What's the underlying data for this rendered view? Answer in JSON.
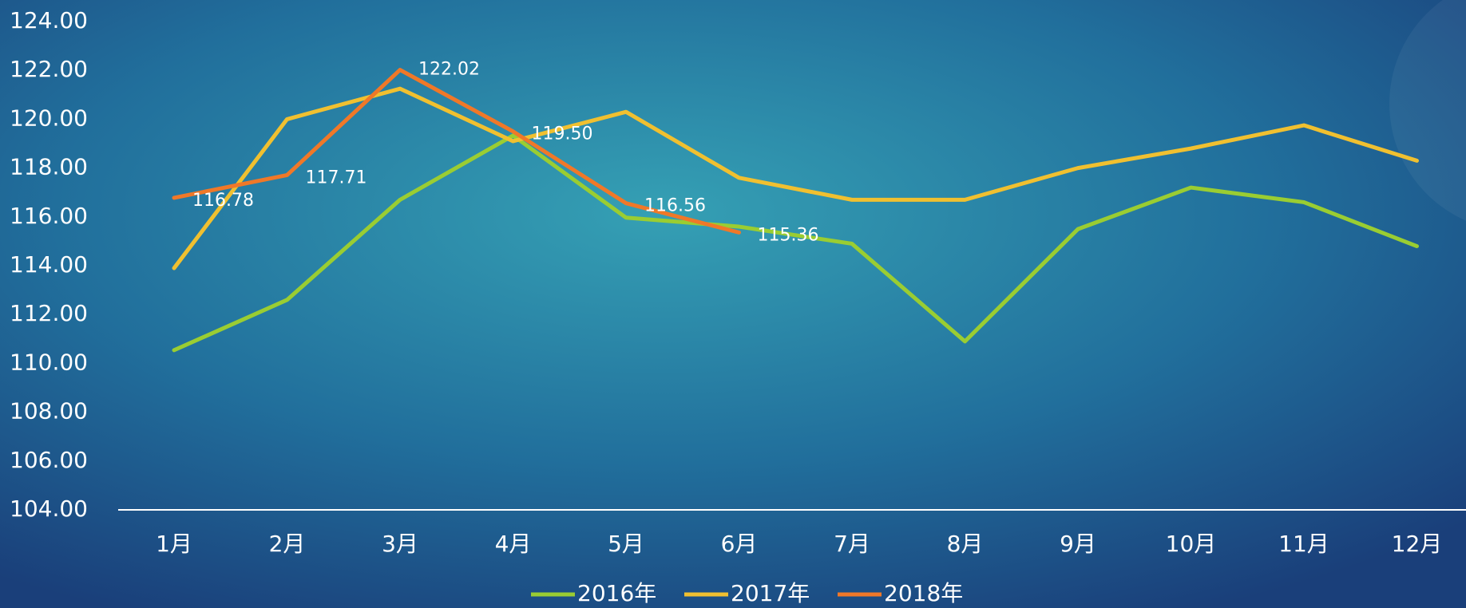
{
  "chart_data": {
    "type": "line",
    "categories": [
      "1月",
      "2月",
      "3月",
      "4月",
      "5月",
      "6月",
      "7月",
      "8月",
      "9月",
      "10月",
      "11月",
      "12月"
    ],
    "series": [
      {
        "name": "2016年",
        "color": "#9acd32",
        "values": [
          110.54,
          112.6,
          116.7,
          119.33,
          115.97,
          115.6,
          114.9,
          110.9,
          115.5,
          117.2,
          116.6,
          114.8
        ]
      },
      {
        "name": "2017年",
        "color": "#f0c030",
        "values": [
          113.9,
          120.0,
          121.25,
          119.1,
          120.3,
          117.6,
          116.7,
          116.7,
          118.0,
          118.8,
          119.75,
          118.3
        ]
      },
      {
        "name": "2018年",
        "color": "#f07828",
        "values": [
          116.78,
          117.71,
          122.02,
          119.5,
          116.56,
          115.36,
          null,
          null,
          null,
          null,
          null,
          null
        ],
        "value_labels": [
          "116.78",
          "117.71",
          "122.02",
          "119.50",
          "116.56",
          "115.36",
          null,
          null,
          null,
          null,
          null,
          null
        ]
      }
    ],
    "ylim": [
      104,
      124
    ],
    "yticks": [
      {
        "value": 104,
        "label": "104.00"
      },
      {
        "value": 106,
        "label": "106.00"
      },
      {
        "value": 108,
        "label": "108.00"
      },
      {
        "value": 110,
        "label": "110.00"
      },
      {
        "value": 112,
        "label": "112.00"
      },
      {
        "value": 114,
        "label": "114.00"
      },
      {
        "value": 116,
        "label": "116.00"
      },
      {
        "value": 118,
        "label": "118.00"
      },
      {
        "value": 120,
        "label": "120.00"
      },
      {
        "value": 122,
        "label": "122.00"
      },
      {
        "value": 124,
        "label": "124.00"
      }
    ],
    "legend": "bottom"
  }
}
